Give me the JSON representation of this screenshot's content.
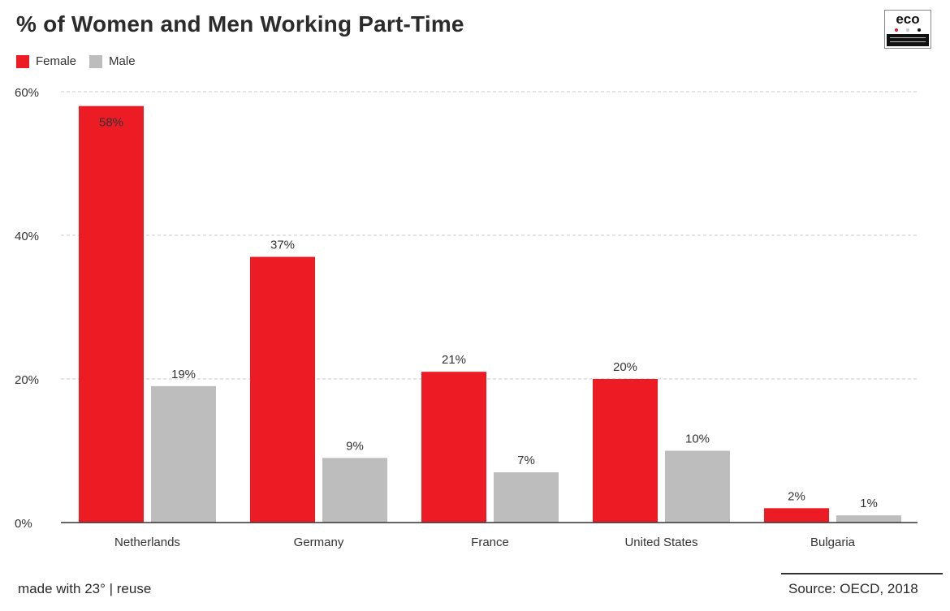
{
  "logo": {
    "word": "eco",
    "dot_colors": [
      "#e0202a",
      "#c8c8c8",
      "#111111"
    ]
  },
  "footer": {
    "credit": "made with 23° | reuse",
    "source": "Source: OECD, 2018"
  },
  "colors": {
    "female": "#ed1c24",
    "male": "#bdbdbe",
    "grid": "#c9c9c9",
    "axis": "#333333"
  },
  "chart_data": {
    "type": "bar",
    "title": "% of Women and Men Working Part-Time",
    "categories": [
      "Netherlands",
      "Germany",
      "France",
      "United States",
      "Bulgaria"
    ],
    "series": [
      {
        "name": "Female",
        "values": [
          58,
          37,
          21,
          20,
          2
        ],
        "labels": [
          "58%",
          "37%",
          "21%",
          "20%",
          "2%"
        ]
      },
      {
        "name": "Male",
        "values": [
          19,
          9,
          7,
          10,
          1
        ],
        "labels": [
          "19%",
          "9%",
          "7%",
          "10%",
          "1%"
        ]
      }
    ],
    "ylim": [
      0,
      60
    ],
    "yticks": [
      0,
      20,
      40,
      60
    ],
    "ytick_labels": [
      "0%",
      "20%",
      "40%",
      "60%"
    ],
    "grid": true,
    "legend": "top-left",
    "xlabel": "",
    "ylabel": ""
  }
}
